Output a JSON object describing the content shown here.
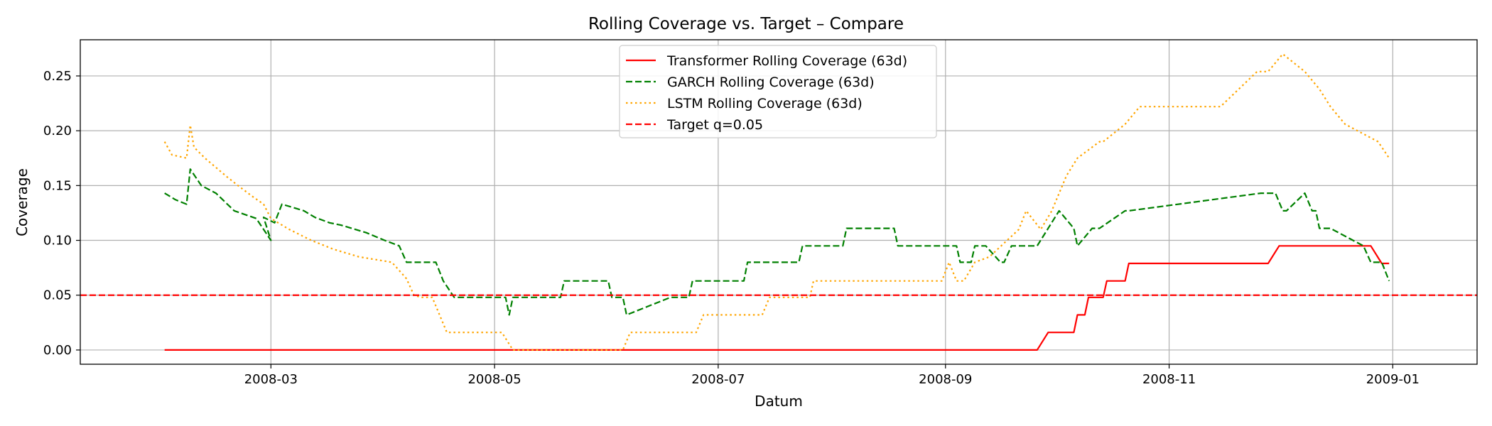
{
  "chart_data": {
    "type": "line",
    "title": "Rolling Coverage vs. Target – Compare",
    "xlabel": "Datum",
    "ylabel": "Coverage",
    "xlim": [
      "2008-01-09",
      "2009-01-24"
    ],
    "ylim": [
      -0.013,
      0.283
    ],
    "grid": true,
    "legend_position": "upper center",
    "x_ticks": [
      "2008-03",
      "2008-05",
      "2008-07",
      "2008-09",
      "2008-11",
      "2009-01"
    ],
    "x_tick_dates": [
      "2008-03-01",
      "2008-05-01",
      "2008-07-01",
      "2008-09-01",
      "2008-11-01",
      "2009-01-01"
    ],
    "y_ticks": [
      0.0,
      0.05,
      0.1,
      0.15,
      0.2,
      0.25
    ],
    "y_tick_labels": [
      "0.00",
      "0.05",
      "0.10",
      "0.15",
      "0.20",
      "0.25"
    ],
    "target": {
      "name": "Target q=0.05",
      "value": 0.05,
      "color": "#ff0000",
      "dash": "dashed"
    },
    "series": [
      {
        "name": "Transformer Rolling Coverage (63d)",
        "color": "#ff0000",
        "dash": "solid",
        "x": [
          "2008-02-01",
          "2008-09-26",
          "2008-09-29",
          "2008-10-06",
          "2008-10-07",
          "2008-10-09",
          "2008-10-10",
          "2008-10-14",
          "2008-10-15",
          "2008-10-20",
          "2008-10-21",
          "2008-11-28",
          "2008-12-01",
          "2008-12-26",
          "2008-12-29",
          "2008-12-31"
        ],
        "values": [
          0.0,
          0.0,
          0.016,
          0.016,
          0.032,
          0.032,
          0.048,
          0.048,
          0.063,
          0.063,
          0.079,
          0.079,
          0.095,
          0.095,
          0.079,
          0.079
        ]
      },
      {
        "name": "GARCH Rolling Coverage (63d)",
        "color": "#008000",
        "dash": "dashed",
        "x": [
          "2008-02-01",
          "2008-02-04",
          "2008-02-07",
          "2008-02-08",
          "2008-02-11",
          "2008-02-15",
          "2008-02-20",
          "2008-02-26",
          "2008-03-01",
          "2008-02-28",
          "2008-03-02",
          "2008-03-04",
          "2008-03-10",
          "2008-03-13",
          "2008-03-17",
          "2008-03-20",
          "2008-03-24",
          "2008-03-27",
          "2008-04-01",
          "2008-04-05",
          "2008-04-07",
          "2008-04-15",
          "2008-04-17",
          "2008-04-20",
          "2008-04-23",
          "2008-05-04",
          "2008-05-05",
          "2008-05-06",
          "2008-05-07",
          "2008-05-08",
          "2008-05-19",
          "2008-05-20",
          "2008-06-01",
          "2008-06-02",
          "2008-06-05",
          "2008-06-06",
          "2008-06-18",
          "2008-06-19",
          "2008-06-23",
          "2008-06-24",
          "2008-07-08",
          "2008-07-09",
          "2008-07-23",
          "2008-07-24",
          "2008-08-04",
          "2008-08-05",
          "2008-08-18",
          "2008-08-19",
          "2008-09-04",
          "2008-09-05",
          "2008-09-08",
          "2008-09-09",
          "2008-09-12",
          "2008-09-16",
          "2008-09-17",
          "2008-09-19",
          "2008-09-26",
          "2008-09-29",
          "2008-10-02",
          "2008-10-06",
          "2008-10-07",
          "2008-10-11",
          "2008-10-13",
          "2008-10-20",
          "2008-10-21",
          "2008-11-26",
          "2008-11-30",
          "2008-12-02",
          "2008-12-03",
          "2008-12-08",
          "2008-12-10",
          "2008-12-11",
          "2008-12-12",
          "2008-12-15",
          "2008-12-24",
          "2008-12-26",
          "2008-12-29",
          "2008-12-31"
        ],
        "values": [
          0.143,
          0.137,
          0.133,
          0.165,
          0.15,
          0.143,
          0.127,
          0.12,
          0.1,
          0.121,
          0.116,
          0.133,
          0.127,
          0.121,
          0.116,
          0.114,
          0.11,
          0.107,
          0.1,
          0.095,
          0.08,
          0.08,
          0.063,
          0.048,
          0.048,
          0.048,
          0.032,
          0.048,
          0.048,
          0.048,
          0.048,
          0.063,
          0.063,
          0.048,
          0.048,
          0.032,
          0.048,
          0.048,
          0.048,
          0.063,
          0.063,
          0.08,
          0.08,
          0.095,
          0.095,
          0.111,
          0.111,
          0.095,
          0.095,
          0.08,
          0.08,
          0.095,
          0.095,
          0.08,
          0.08,
          0.095,
          0.095,
          0.111,
          0.127,
          0.111,
          0.095,
          0.111,
          0.111,
          0.127,
          0.127,
          0.143,
          0.143,
          0.127,
          0.127,
          0.143,
          0.127,
          0.127,
          0.111,
          0.111,
          0.095,
          0.08,
          0.08,
          0.063
        ]
      },
      {
        "name": "LSTM Rolling Coverage (63d)",
        "color": "#ffa500",
        "dash": "dotted",
        "x": [
          "2008-02-01",
          "2008-02-03",
          "2008-02-07",
          "2008-02-08",
          "2008-02-09",
          "2008-02-12",
          "2008-02-18",
          "2008-02-21",
          "2008-02-25",
          "2008-02-28",
          "2008-03-01",
          "2008-03-06",
          "2008-03-12",
          "2008-03-18",
          "2008-03-25",
          "2008-04-03",
          "2008-04-07",
          "2008-04-09",
          "2008-04-11",
          "2008-04-14",
          "2008-04-18",
          "2008-05-03",
          "2008-05-06",
          "2008-06-05",
          "2008-06-07",
          "2008-06-25",
          "2008-06-27",
          "2008-07-13",
          "2008-07-15",
          "2008-07-26",
          "2008-07-27",
          "2008-08-31",
          "2008-09-02",
          "2008-09-04",
          "2008-09-06",
          "2008-09-09",
          "2008-09-13",
          "2008-09-21",
          "2008-09-23",
          "2008-09-27",
          "2008-09-30",
          "2008-10-04",
          "2008-10-07",
          "2008-10-13",
          "2008-10-14",
          "2008-10-20",
          "2008-10-24",
          "2008-10-27",
          "2008-11-15",
          "2008-11-25",
          "2008-11-28",
          "2008-12-02",
          "2008-12-08",
          "2008-12-12",
          "2008-12-15",
          "2008-12-19",
          "2008-12-28",
          "2008-12-31"
        ],
        "values": [
          0.19,
          0.178,
          0.175,
          0.205,
          0.185,
          0.175,
          0.158,
          0.15,
          0.14,
          0.133,
          0.12,
          0.11,
          0.1,
          0.092,
          0.085,
          0.08,
          0.065,
          0.05,
          0.048,
          0.048,
          0.016,
          0.016,
          0.0,
          0.0,
          0.016,
          0.016,
          0.032,
          0.032,
          0.048,
          0.048,
          0.063,
          0.063,
          0.08,
          0.063,
          0.063,
          0.08,
          0.085,
          0.11,
          0.127,
          0.11,
          0.127,
          0.159,
          0.175,
          0.19,
          0.19,
          0.206,
          0.222,
          0.222,
          0.222,
          0.254,
          0.254,
          0.27,
          0.254,
          0.238,
          0.222,
          0.206,
          0.19,
          0.175
        ]
      }
    ]
  }
}
